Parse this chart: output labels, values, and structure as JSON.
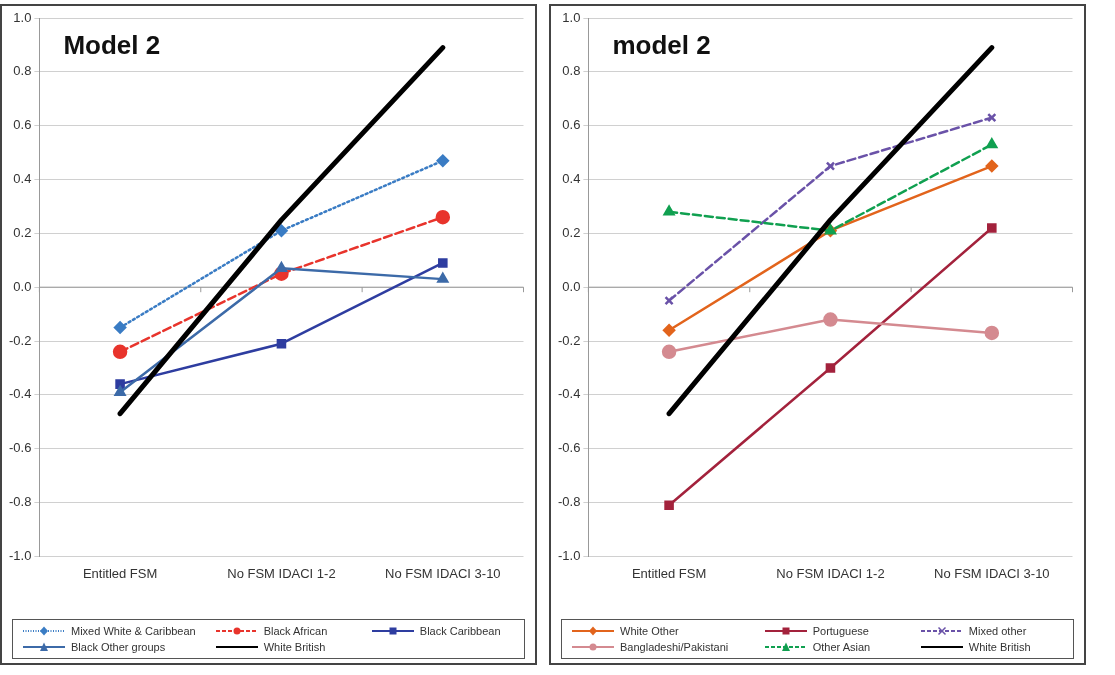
{
  "chart_data": [
    {
      "type": "line",
      "title": "Model 2",
      "categories": [
        "Entitled FSM",
        "No FSM IDACI 1-2",
        "No FSM IDACI 3-10"
      ],
      "ylim": [
        -1,
        1
      ],
      "yticks": [
        {
          "value": -1,
          "label": "-1.0"
        },
        {
          "value": -0.8,
          "label": "-0.8"
        },
        {
          "value": -0.6,
          "label": "-0.6"
        },
        {
          "value": -0.4,
          "label": "-0.4"
        },
        {
          "value": -0.2,
          "label": "-0.2"
        },
        {
          "value": 0,
          "label": "0.0"
        },
        {
          "value": 0.2,
          "label": "0.2"
        },
        {
          "value": 0.4,
          "label": "0.4"
        },
        {
          "value": 0.6,
          "label": "0.6"
        },
        {
          "value": 0.8,
          "label": "0.8"
        },
        {
          "value": 1,
          "label": "1.0"
        }
      ],
      "grid": "y",
      "legend": "bottom",
      "series": [
        {
          "name": "Mixed White & Caribbean",
          "color": "#3a7cc4",
          "values": [
            -0.15,
            0.21,
            0.47
          ],
          "marker": "diamond",
          "line_style": "dotted"
        },
        {
          "name": "Black African",
          "color": "#e8342c",
          "values": [
            -0.24,
            0.05,
            0.26
          ],
          "marker": "circle",
          "line_style": "dashed"
        },
        {
          "name": "Black Caribbean",
          "color": "#2e3da0",
          "values": [
            -0.36,
            -0.21,
            0.09
          ],
          "marker": "square",
          "line_style": "solid"
        },
        {
          "name": "Black Other groups",
          "color": "#3c6aa8",
          "values": [
            -0.39,
            0.07,
            0.03
          ],
          "marker": "triangle",
          "line_style": "solid"
        },
        {
          "name": "White British",
          "color": "#000000",
          "values": [
            -0.47,
            0.25,
            0.89
          ],
          "marker": "none",
          "line_style": "solid"
        }
      ]
    },
    {
      "type": "line",
      "title": "model 2",
      "categories": [
        "Entitled FSM",
        "No FSM IDACI 1-2",
        "No FSM IDACI 3-10"
      ],
      "ylim": [
        -1,
        1
      ],
      "yticks": [
        {
          "value": -1,
          "label": "-1.0"
        },
        {
          "value": -0.8,
          "label": "-0.8"
        },
        {
          "value": -0.6,
          "label": "-0.6"
        },
        {
          "value": -0.4,
          "label": "-0.4"
        },
        {
          "value": -0.2,
          "label": "-0.2"
        },
        {
          "value": 0,
          "label": "0.0"
        },
        {
          "value": 0.2,
          "label": "0.2"
        },
        {
          "value": 0.4,
          "label": "0.4"
        },
        {
          "value": 0.6,
          "label": "0.6"
        },
        {
          "value": 0.8,
          "label": "0.8"
        },
        {
          "value": 1,
          "label": "1.0"
        }
      ],
      "grid": "y",
      "legend": "bottom",
      "series": [
        {
          "name": "White Other",
          "color": "#e2641c",
          "values": [
            -0.16,
            0.21,
            0.45
          ],
          "marker": "diamond",
          "line_style": "solid"
        },
        {
          "name": "Portuguese",
          "color": "#a3223c",
          "values": [
            -0.81,
            -0.3,
            0.22
          ],
          "marker": "square",
          "line_style": "solid"
        },
        {
          "name": "Mixed other",
          "color": "#6a52a8",
          "values": [
            -0.05,
            0.45,
            0.63
          ],
          "marker": "cross",
          "line_style": "dashed"
        },
        {
          "name": "Bangladeshi/Pakistani",
          "color": "#d48a90",
          "values": [
            -0.24,
            -0.12,
            -0.17
          ],
          "marker": "circle",
          "line_style": "solid"
        },
        {
          "name": "Other Asian",
          "color": "#10a050",
          "values": [
            0.28,
            0.21,
            0.53
          ],
          "marker": "triangle",
          "line_style": "dashed"
        },
        {
          "name": "White British",
          "color": "#000000",
          "values": [
            -0.47,
            0.25,
            0.89
          ],
          "marker": "none",
          "line_style": "solid"
        }
      ]
    }
  ]
}
